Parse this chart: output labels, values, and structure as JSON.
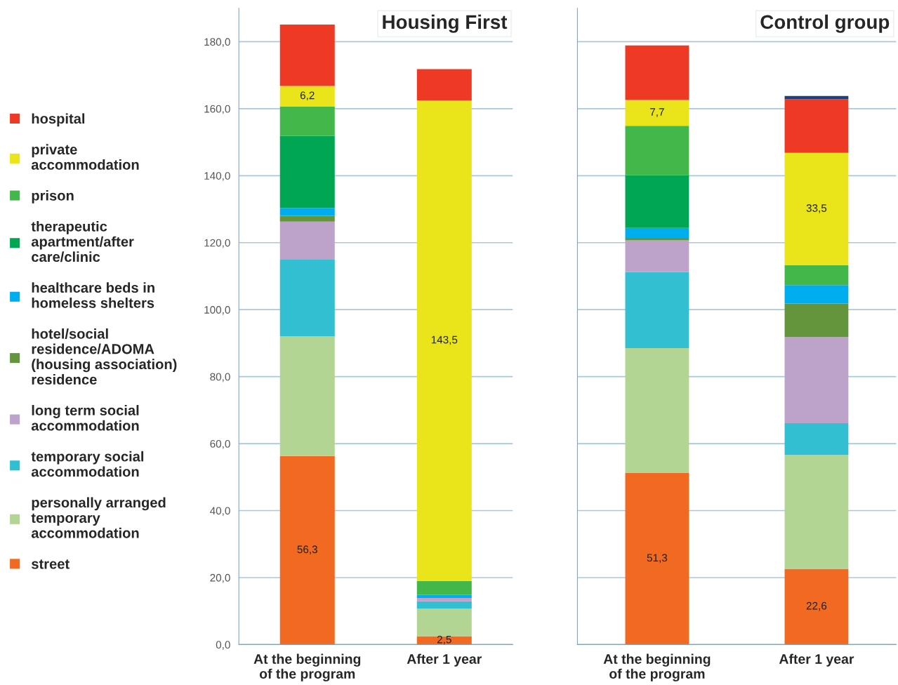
{
  "chart_data": [
    {
      "type": "bar",
      "title": "Housing First",
      "stacked": true,
      "legend": "left",
      "grid": "y",
      "categories": [
        "At the beginning\nof the program",
        "After 1 year"
      ],
      "ylim": [
        0,
        190
      ],
      "yticks": [
        {
          "value": 0,
          "label": "0,0"
        },
        {
          "value": 20,
          "label": "20,0"
        },
        {
          "value": 40,
          "label": "40,0"
        },
        {
          "value": 60,
          "label": "60,0"
        },
        {
          "value": 80,
          "label": "80,0"
        },
        {
          "value": 100,
          "label": "100,0"
        },
        {
          "value": 120,
          "label": "120,0"
        },
        {
          "value": 140,
          "label": "140,0"
        },
        {
          "value": 160,
          "label": "160,0"
        },
        {
          "value": 180,
          "label": "180,0"
        }
      ],
      "series": [
        {
          "name": "street",
          "color": "#f26a22",
          "values": [
            56.3,
            2.5
          ],
          "value_labels": [
            "56,3",
            "2,5"
          ]
        },
        {
          "name": "personally arranged\ntemporary\naccommodation",
          "color": "#b3d594",
          "values": [
            35.8,
            8.3
          ]
        },
        {
          "name": "temporary social\naccommodation",
          "color": "#31bfd1",
          "values": [
            22.8,
            2.1
          ]
        },
        {
          "name": "long term social\naccommodation",
          "color": "#bda2c9",
          "values": [
            11.4,
            1.0
          ]
        },
        {
          "name": "hotel/social\nresidence/ADOMA\n(housing association)\nresidence",
          "color": "#64953c",
          "values": [
            1.7,
            0
          ]
        },
        {
          "name": "healthcare beds in\nhomeless shelters",
          "color": "#00aeef",
          "values": [
            2.4,
            0.9
          ]
        },
        {
          "name": "therapeutic\napartment/after\ncare/clinic",
          "color": "#00a651",
          "values": [
            21.5,
            0
          ]
        },
        {
          "name": "prison",
          "color": "#44b74a",
          "values": [
            8.7,
            4.2
          ]
        },
        {
          "name": "private\naccommodation",
          "color": "#e9e51a",
          "values": [
            6.2,
            143.5
          ],
          "value_labels": [
            "6,2",
            "143,5"
          ]
        },
        {
          "name": "hospital",
          "color": "#ee3a24",
          "values": [
            18.3,
            9.3
          ]
        },
        {
          "color": "#1f3f7a",
          "values": [
            0,
            0
          ]
        }
      ]
    },
    {
      "type": "bar",
      "title": "Control group",
      "stacked": true,
      "grid": "y",
      "tick_labels": "x",
      "categories": [
        "At the beginning\nof the program",
        "After 1 year"
      ],
      "ylim": [
        0,
        190
      ],
      "yticks": [
        {
          "value": 0,
          "label": null
        },
        {
          "value": 20,
          "label": null
        },
        {
          "value": 40,
          "label": null
        },
        {
          "value": 60,
          "label": null
        },
        {
          "value": 80,
          "label": null
        },
        {
          "value": 100,
          "label": null
        },
        {
          "value": 120,
          "label": null
        },
        {
          "value": 140,
          "label": null
        },
        {
          "value": 160,
          "label": null
        },
        {
          "value": 180,
          "label": null
        }
      ],
      "series": [
        {
          "name": "street",
          "color": "#f26a22",
          "values": [
            51.3,
            22.6
          ],
          "value_labels": [
            "51,3",
            "22,6"
          ]
        },
        {
          "name": "personally arranged\ntemporary\naccommodation",
          "color": "#b3d594",
          "values": [
            37.2,
            34.0
          ]
        },
        {
          "name": "temporary social\naccommodation",
          "color": "#31bfd1",
          "values": [
            22.7,
            9.5
          ]
        },
        {
          "name": "long term social\naccommodation",
          "color": "#bda2c9",
          "values": [
            9.5,
            25.7
          ]
        },
        {
          "name": "hotel/social\nresidence/ADOMA\n(housing association)\nresidence",
          "color": "#64953c",
          "values": [
            0.7,
            10.0
          ]
        },
        {
          "name": "healthcare beds in\nhomeless shelters",
          "color": "#00aeef",
          "values": [
            3.0,
            5.5
          ]
        },
        {
          "name": "therapeutic\napartment/after\ncare/clinic",
          "color": "#00a651",
          "values": [
            15.7,
            0
          ]
        },
        {
          "name": "prison",
          "color": "#44b74a",
          "values": [
            14.8,
            6.0
          ]
        },
        {
          "name": "private\naccommodation",
          "color": "#e9e51a",
          "values": [
            7.7,
            33.5
          ],
          "value_labels": [
            "7,7",
            "33,5"
          ]
        },
        {
          "name": "hospital",
          "color": "#ee3a24",
          "values": [
            16.3,
            16.0
          ]
        },
        {
          "color": "#1f3f7a",
          "values": [
            0,
            1.0
          ]
        }
      ]
    }
  ]
}
